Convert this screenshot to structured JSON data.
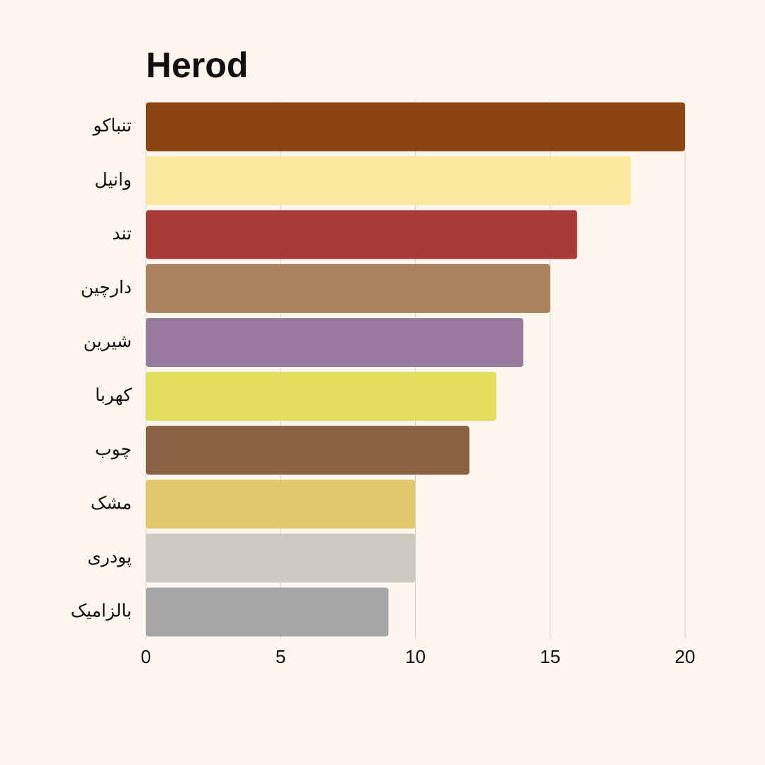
{
  "chart_data": {
    "type": "bar",
    "orientation": "horizontal",
    "title": "Herod",
    "categories": [
      "تنباکو",
      "وانیل",
      "تند",
      "دارچین",
      "شیرین",
      "کهربا",
      "چوب",
      "مشک",
      "پودری",
      "بالزامیک"
    ],
    "values": [
      20,
      18,
      16,
      15,
      14,
      13,
      12,
      10,
      10,
      9
    ],
    "colors": [
      "#8B4513",
      "#FDE9A0",
      "#A83A3A",
      "#A9835C",
      "#997B9E",
      "#E3DD5E",
      "#8A6244",
      "#E2C76E",
      "#CCCAC2",
      "#A6A6A6"
    ],
    "xlim": [
      0,
      20
    ],
    "xticks": [
      0,
      5,
      10,
      15,
      20
    ],
    "grid": true
  }
}
